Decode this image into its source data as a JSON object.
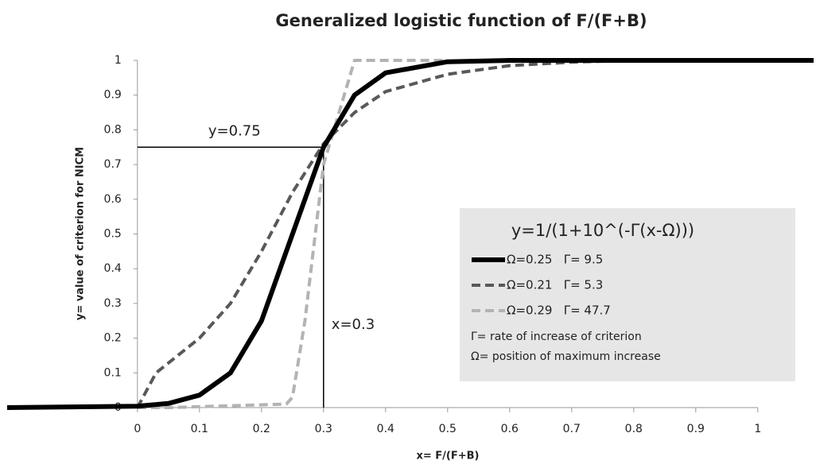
{
  "chart_data": {
    "type": "line",
    "title": "Generalized logistic function of F/(F+B)",
    "x_label": "x= F/(F+B)",
    "y_label": "y= value of criterion for NICM",
    "xlim": [
      -0.21,
      1.09
    ],
    "ylim": [
      0,
      1
    ],
    "xticks": [
      0,
      0.1,
      0.2,
      0.3,
      0.4,
      0.5,
      0.6,
      0.7,
      0.8,
      0.9,
      1
    ],
    "yticks": [
      0,
      0.1,
      0.2,
      0.3,
      0.4,
      0.5,
      0.6,
      0.7,
      0.8,
      0.9,
      1
    ],
    "grid": false,
    "legend_title": "y=1/(1+10^(-Γ(x-Ω)))",
    "legend_notes": [
      "Γ= rate of increase of criterion",
      "Ω= position of maximum increase"
    ],
    "guides": [
      {
        "label": "y=0.75",
        "y": 0.75
      },
      {
        "label": "x=0.3",
        "x": 0.3
      }
    ],
    "series": [
      {
        "name": "Ω=0.25   Γ= 9.5",
        "color": "#000000",
        "width": 6,
        "dash": "",
        "x": [
          -0.21,
          0,
          0.05,
          0.1,
          0.15,
          0.2,
          0.25,
          0.3,
          0.35,
          0.4,
          0.5,
          0.6,
          0.7,
          1,
          1.09
        ],
        "values": [
          0,
          0.004,
          0.012,
          0.036,
          0.1,
          0.25,
          0.5,
          0.75,
          0.9,
          0.964,
          0.996,
          1,
          1,
          1,
          1
        ]
      },
      {
        "name": "Ω=0.21   Γ= 5.3",
        "color": "#595959",
        "width": 4,
        "dash": "11 6",
        "x": [
          0,
          0.03,
          0.1,
          0.15,
          0.2,
          0.25,
          0.3,
          0.35,
          0.4,
          0.5,
          0.6,
          0.7,
          0.8
        ],
        "values": [
          0,
          0.1,
          0.2,
          0.3,
          0.45,
          0.62,
          0.76,
          0.85,
          0.91,
          0.96,
          0.985,
          0.995,
          1
        ]
      },
      {
        "name": "Ω=0.29   Γ= 47.7",
        "color": "#b3b3b3",
        "width": 4,
        "dash": "11 6",
        "x": [
          0,
          0.05,
          0.24,
          0.25,
          0.27,
          0.3,
          0.35,
          0.5
        ],
        "values": [
          0,
          0,
          0.01,
          0.03,
          0.25,
          0.7,
          1,
          1
        ]
      }
    ]
  }
}
